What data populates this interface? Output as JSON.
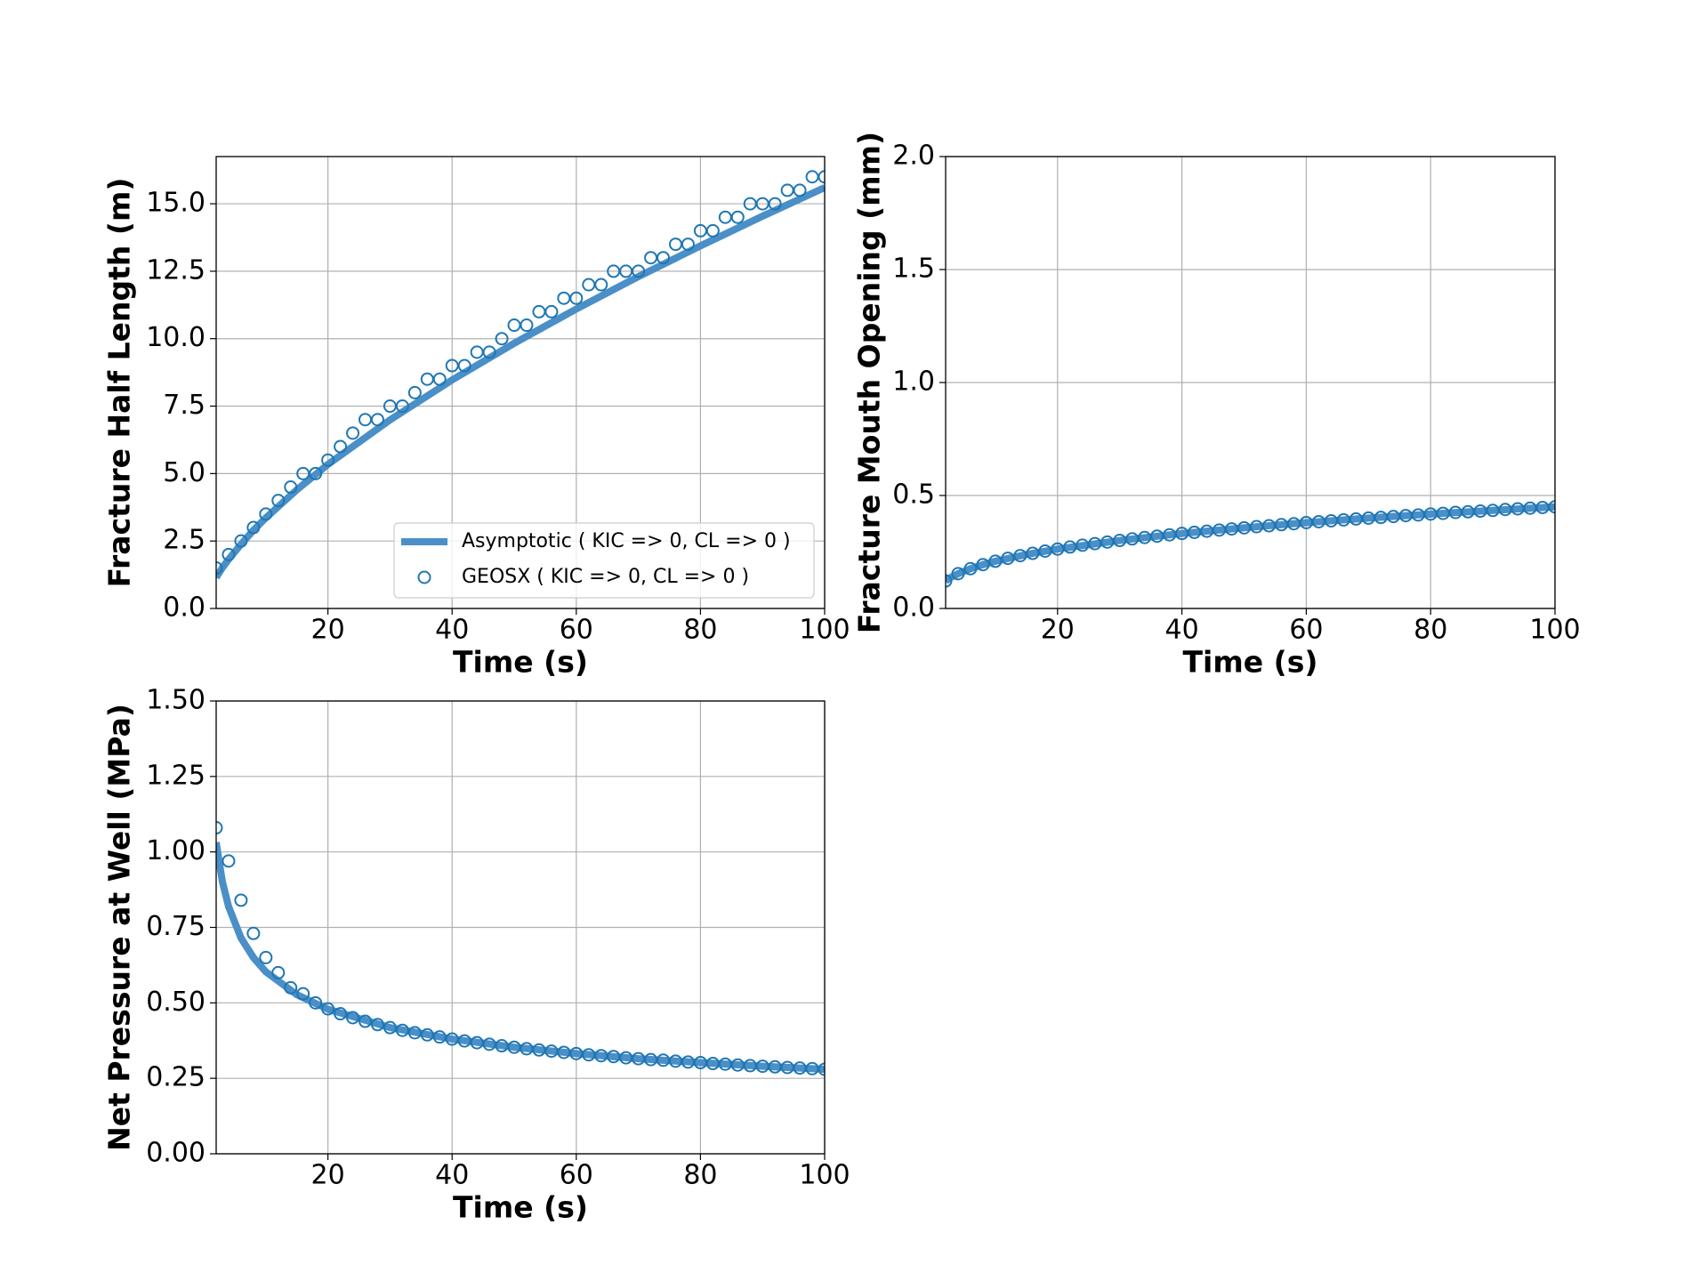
{
  "chart_data": [
    {
      "type": "line",
      "xlabel": "Time (s)",
      "ylabel": "Fracture Half Length (m)",
      "xlim": [
        2,
        100
      ],
      "xticks": [
        20,
        40,
        60,
        80,
        100
      ],
      "ylim": [
        0,
        16.75
      ],
      "yticks": [
        {
          "value": 0,
          "label": "0.0"
        },
        2.5,
        {
          "value": 5,
          "label": "5.0"
        },
        7.5,
        {
          "value": 10,
          "label": "10.0"
        },
        12.5,
        {
          "value": 15,
          "label": "15.0"
        }
      ],
      "grid": true,
      "legend": "lower right",
      "series": [
        {
          "name": "Asymptotic ( KIC => 0, CL => 0 )",
          "color": "#4a8fc7",
          "marker": "line",
          "x": [
            2,
            3,
            4,
            6,
            8,
            10,
            15,
            20,
            30,
            40,
            50,
            60,
            70,
            80,
            90,
            100
          ],
          "values": [
            1.15,
            1.51,
            1.82,
            2.38,
            2.9,
            3.36,
            4.4,
            5.34,
            6.99,
            8.47,
            9.83,
            11.1,
            12.3,
            13.44,
            14.54,
            15.6
          ]
        },
        {
          "name": "GEOSX ( KIC => 0, CL => 0 )",
          "color": "#1f77b4",
          "marker": "circle",
          "x": [
            2,
            4,
            6,
            8,
            10,
            12,
            14,
            16,
            18,
            20,
            22,
            24,
            26,
            28,
            30,
            32,
            34,
            36,
            38,
            40,
            42,
            44,
            46,
            48,
            50,
            52,
            54,
            56,
            58,
            60,
            62,
            64,
            66,
            68,
            70,
            72,
            74,
            76,
            78,
            80,
            82,
            84,
            86,
            88,
            90,
            92,
            94,
            96,
            98,
            100
          ],
          "values": [
            1.5,
            2.0,
            2.5,
            3.0,
            3.5,
            4.0,
            4.5,
            5.0,
            5.0,
            5.5,
            6.0,
            6.5,
            7.0,
            7.0,
            7.5,
            7.5,
            8.0,
            8.5,
            8.5,
            9.0,
            9.0,
            9.5,
            9.5,
            10.0,
            10.5,
            10.5,
            11.0,
            11.0,
            11.5,
            11.5,
            12.0,
            12.0,
            12.5,
            12.5,
            12.5,
            13.0,
            13.0,
            13.5,
            13.5,
            14.0,
            14.0,
            14.5,
            14.5,
            15.0,
            15.0,
            15.0,
            15.5,
            15.5,
            16.0,
            16.0
          ]
        }
      ]
    },
    {
      "type": "line",
      "xlabel": "Time (s)",
      "ylabel": "Fracture Mouth Opening (mm)",
      "xlim": [
        2,
        100
      ],
      "xticks": [
        20,
        40,
        60,
        80,
        100
      ],
      "ylim": [
        0,
        2
      ],
      "yticks": [
        {
          "value": 0,
          "label": "0.0"
        },
        0.5,
        {
          "value": 1,
          "label": "1.0"
        },
        1.5,
        {
          "value": 2,
          "label": "2.0"
        }
      ],
      "grid": true,
      "series": [
        {
          "color": "#4a8fc7",
          "marker": "line",
          "x": [
            2,
            3,
            4,
            6,
            8,
            10,
            15,
            20,
            30,
            40,
            50,
            60,
            70,
            80,
            90,
            100
          ],
          "values": [
            0.122,
            0.14,
            0.154,
            0.176,
            0.194,
            0.209,
            0.239,
            0.263,
            0.301,
            0.332,
            0.357,
            0.38,
            0.4,
            0.418,
            0.434,
            0.45
          ]
        },
        {
          "color": "#1f77b4",
          "marker": "circle",
          "x": [
            2,
            4,
            6,
            8,
            10,
            12,
            14,
            16,
            18,
            20,
            22,
            24,
            26,
            28,
            30,
            32,
            34,
            36,
            38,
            40,
            42,
            44,
            46,
            48,
            50,
            52,
            54,
            56,
            58,
            60,
            62,
            64,
            66,
            68,
            70,
            72,
            74,
            76,
            78,
            80,
            82,
            84,
            86,
            88,
            90,
            92,
            94,
            96,
            98,
            100
          ],
          "values": [
            0.122,
            0.154,
            0.176,
            0.194,
            0.209,
            0.222,
            0.234,
            0.244,
            0.254,
            0.263,
            0.272,
            0.28,
            0.287,
            0.294,
            0.301,
            0.308,
            0.314,
            0.32,
            0.326,
            0.332,
            0.337,
            0.342,
            0.347,
            0.352,
            0.357,
            0.362,
            0.366,
            0.371,
            0.375,
            0.38,
            0.384,
            0.388,
            0.392,
            0.396,
            0.4,
            0.403,
            0.407,
            0.411,
            0.414,
            0.418,
            0.421,
            0.425,
            0.428,
            0.431,
            0.434,
            0.438,
            0.441,
            0.444,
            0.447,
            0.45
          ]
        }
      ]
    },
    {
      "type": "line",
      "xlabel": "Time (s)",
      "ylabel": "Net Pressure at Well (MPa)",
      "xlim": [
        2,
        100
      ],
      "xticks": [
        20,
        40,
        60,
        80,
        100
      ],
      "ylim": [
        0,
        1.5
      ],
      "yticks": [
        {
          "value": 0,
          "label": "0.00"
        },
        0.25,
        {
          "value": 0.5,
          "label": "0.50"
        },
        0.75,
        {
          "value": 1,
          "label": "1.00"
        },
        1.25,
        {
          "value": 1.5,
          "label": "1.50"
        }
      ],
      "grid": true,
      "series": [
        {
          "color": "#4a8fc7",
          "marker": "line",
          "x": [
            2,
            3,
            4,
            6,
            8,
            10,
            15,
            20,
            30,
            40,
            50,
            60,
            70,
            80,
            90,
            100
          ],
          "values": [
            1.032,
            0.901,
            0.819,
            0.715,
            0.65,
            0.603,
            0.527,
            0.479,
            0.418,
            0.38,
            0.353,
            0.332,
            0.315,
            0.302,
            0.29,
            0.28
          ]
        },
        {
          "color": "#1f77b4",
          "marker": "circle",
          "x": [
            2,
            4,
            6,
            8,
            10,
            12,
            14,
            16,
            18,
            20,
            22,
            24,
            26,
            28,
            30,
            32,
            34,
            36,
            38,
            40,
            42,
            44,
            46,
            48,
            50,
            52,
            54,
            56,
            58,
            60,
            62,
            64,
            66,
            68,
            70,
            72,
            74,
            76,
            78,
            80,
            82,
            84,
            86,
            88,
            90,
            92,
            94,
            96,
            98,
            100
          ],
          "values": [
            1.08,
            0.97,
            0.84,
            0.73,
            0.65,
            0.6,
            0.55,
            0.53,
            0.5,
            0.48,
            0.464,
            0.451,
            0.439,
            0.428,
            0.418,
            0.409,
            0.401,
            0.394,
            0.387,
            0.38,
            0.374,
            0.368,
            0.363,
            0.358,
            0.353,
            0.348,
            0.344,
            0.34,
            0.336,
            0.332,
            0.328,
            0.325,
            0.322,
            0.318,
            0.315,
            0.312,
            0.31,
            0.307,
            0.304,
            0.302,
            0.299,
            0.297,
            0.294,
            0.292,
            0.29,
            0.288,
            0.286,
            0.284,
            0.282,
            0.28
          ]
        }
      ]
    }
  ]
}
